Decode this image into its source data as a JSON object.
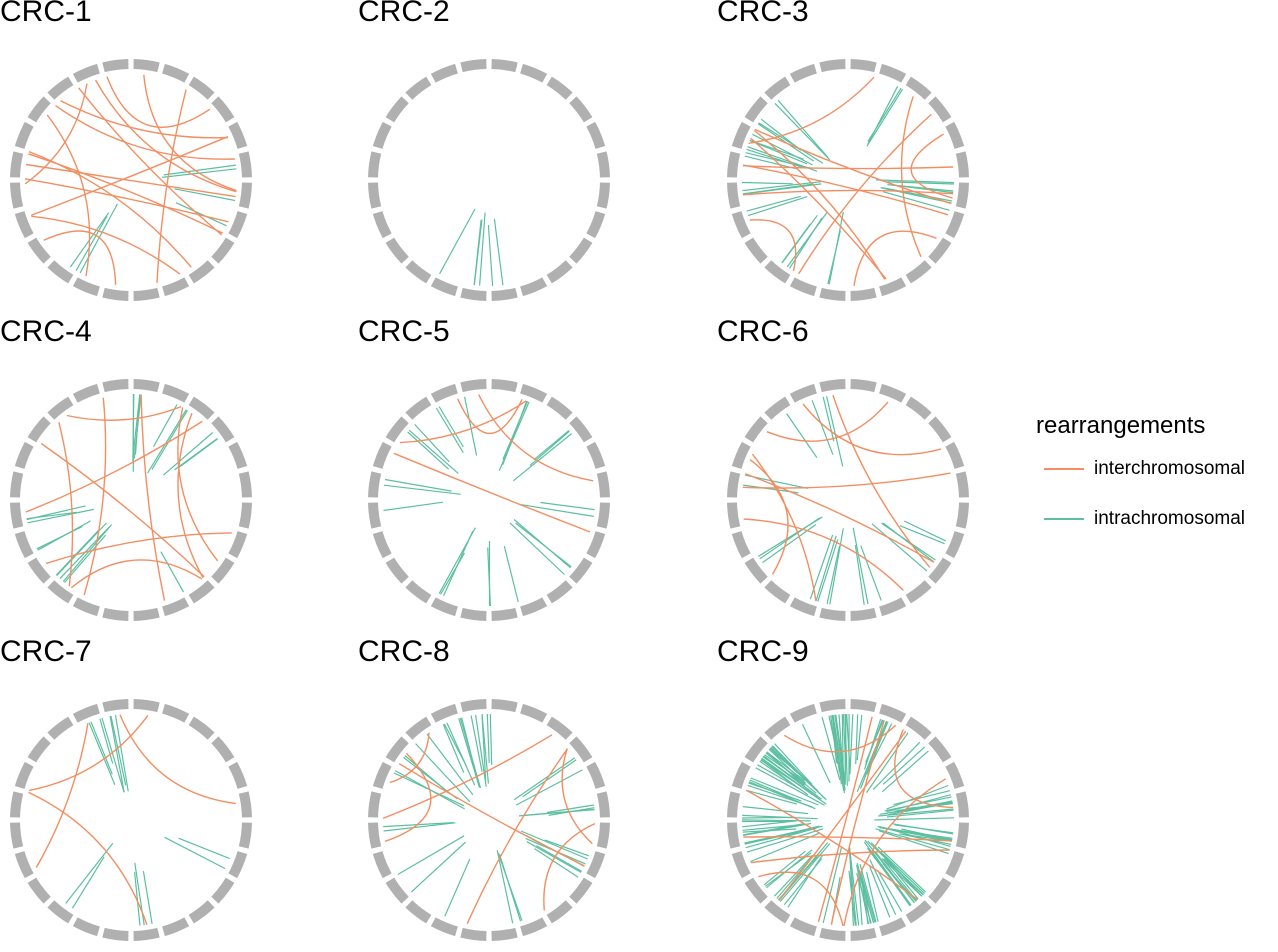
{
  "colors": {
    "interchromosomal": "#F28E62",
    "intrachromosomal": "#5DBFA0",
    "ring": "#B0B0B0"
  },
  "legend": {
    "title": "rearrangements",
    "items": [
      {
        "label": "interchromosomal",
        "color": "#F28E62"
      },
      {
        "label": "intrachromosomal",
        "color": "#5DBFA0"
      }
    ]
  },
  "chart_data": [
    {
      "type": "circos",
      "title": "CRC-1",
      "n_chromosome_segments": 24,
      "series": [
        {
          "name": "interchromosomal",
          "count": 16
        },
        {
          "name": "intrachromosomal",
          "count": 7
        }
      ]
    },
    {
      "type": "circos",
      "title": "CRC-2",
      "n_chromosome_segments": 24,
      "series": [
        {
          "name": "interchromosomal",
          "count": 0
        },
        {
          "name": "intrachromosomal",
          "count": 6
        }
      ]
    },
    {
      "type": "circos",
      "title": "CRC-3",
      "n_chromosome_segments": 24,
      "series": [
        {
          "name": "interchromosomal",
          "count": 12
        },
        {
          "name": "intrachromosomal",
          "count": 34
        }
      ]
    },
    {
      "type": "circos",
      "title": "CRC-4",
      "n_chromosome_segments": 24,
      "series": [
        {
          "name": "interchromosomal",
          "count": 10
        },
        {
          "name": "intrachromosomal",
          "count": 22
        }
      ]
    },
    {
      "type": "circos",
      "title": "CRC-5",
      "n_chromosome_segments": 24,
      "series": [
        {
          "name": "interchromosomal",
          "count": 4
        },
        {
          "name": "intrachromosomal",
          "count": 26
        }
      ]
    },
    {
      "type": "circos",
      "title": "CRC-6",
      "n_chromosome_segments": 24,
      "series": [
        {
          "name": "interchromosomal",
          "count": 8
        },
        {
          "name": "intrachromosomal",
          "count": 22
        }
      ]
    },
    {
      "type": "circos",
      "title": "CRC-7",
      "n_chromosome_segments": 24,
      "series": [
        {
          "name": "interchromosomal",
          "count": 4
        },
        {
          "name": "intrachromosomal",
          "count": 14
        }
      ]
    },
    {
      "type": "circos",
      "title": "CRC-8",
      "n_chromosome_segments": 24,
      "series": [
        {
          "name": "interchromosomal",
          "count": 7
        },
        {
          "name": "intrachromosomal",
          "count": 40
        }
      ]
    },
    {
      "type": "circos",
      "title": "CRC-9",
      "n_chromosome_segments": 24,
      "series": [
        {
          "name": "interchromosomal",
          "count": 10
        },
        {
          "name": "intrachromosomal",
          "count": 150
        }
      ]
    }
  ]
}
